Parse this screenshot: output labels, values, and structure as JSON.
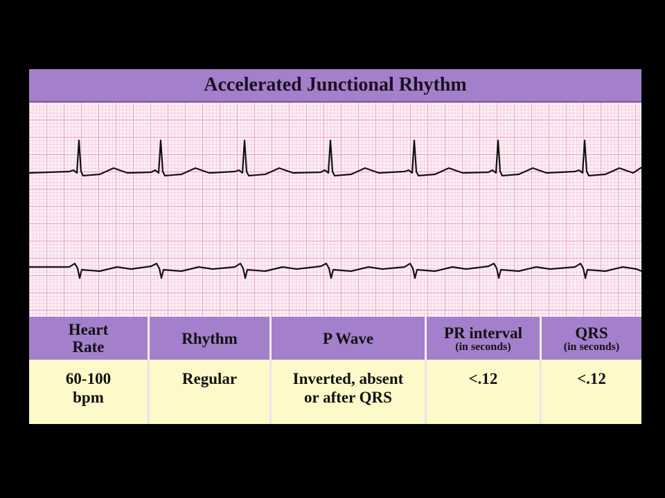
{
  "header": {
    "title": "Accelerated Junctional Rhythm"
  },
  "table": {
    "columns": [
      {
        "label": [
          "Heart",
          "Rate"
        ]
      },
      {
        "label": [
          "Rhythm"
        ]
      },
      {
        "label": [
          "P Wave"
        ]
      },
      {
        "label": [
          "PR interval"
        ],
        "note": "(in seconds)"
      },
      {
        "label": [
          "QRS"
        ],
        "note": "(in seconds)"
      }
    ],
    "rows": [
      [
        [
          "60-100",
          "bpm"
        ],
        [
          "Regular"
        ],
        [
          "Inverted, absent",
          "or after QRS"
        ],
        [
          "<.12"
        ],
        [
          "<.12"
        ]
      ]
    ]
  }
}
